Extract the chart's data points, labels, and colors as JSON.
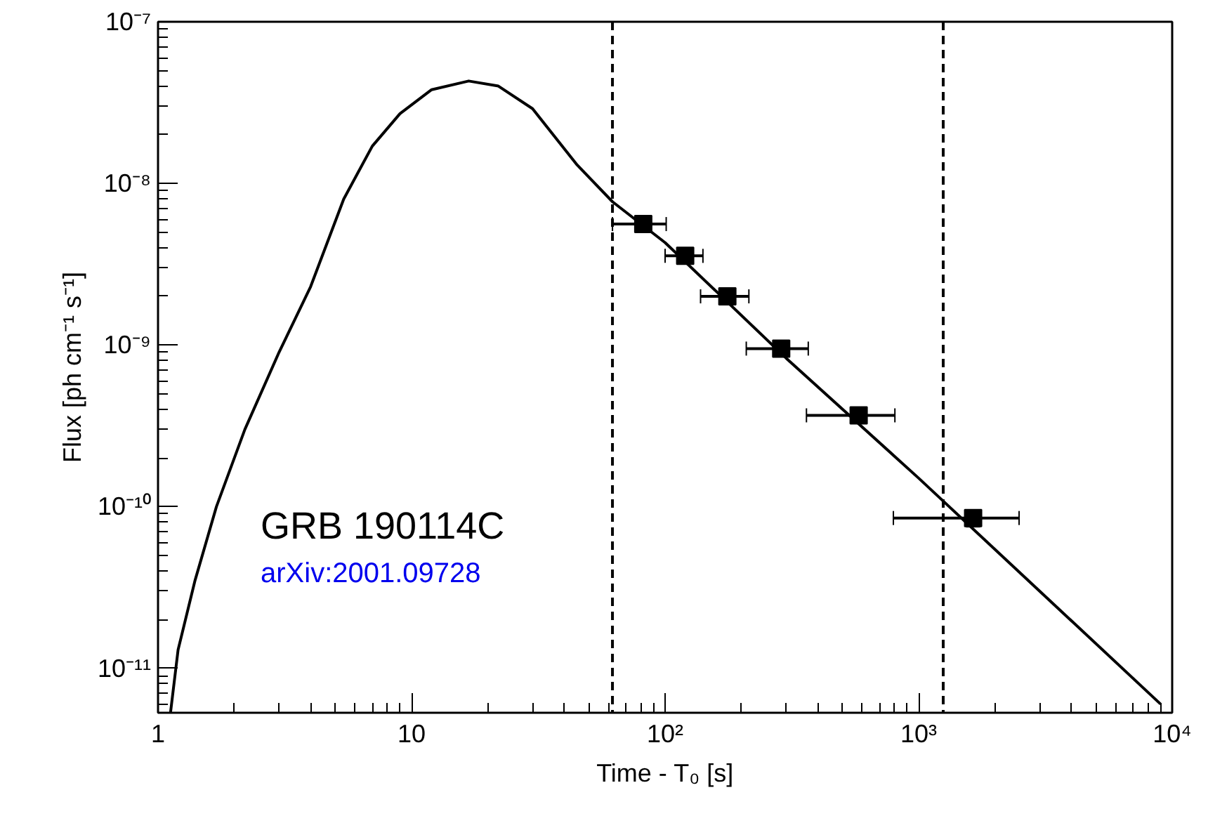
{
  "chart_data": {
    "type": "line",
    "xlabel": "Time - T₀ [s]",
    "ylabel": "Flux [ph cm⁻¹ s⁻¹]",
    "log": "xy",
    "grid": false,
    "xlim": [
      1,
      10000
    ],
    "ylim": [
      5.3e-12,
      1e-07
    ],
    "xticks": [
      1,
      10,
      {
        "value": 100,
        "label": "10²"
      },
      {
        "value": 1000,
        "label": "10³"
      },
      {
        "value": 10000,
        "label": "10⁴"
      }
    ],
    "yticks": [
      {
        "value": 1e-11,
        "label": "10⁻¹¹"
      },
      {
        "value": 1e-10,
        "label": "10⁻¹⁰"
      },
      {
        "value": 1e-09,
        "label": "10⁻⁹"
      },
      {
        "value": 1e-08,
        "label": "10⁻⁸"
      },
      {
        "value": 1e-07,
        "label": "10⁻⁷"
      }
    ],
    "series": [
      {
        "color": "#000000",
        "line_style": "solid",
        "x": [
          1.12,
          1.2,
          1.4,
          1.7,
          2.2,
          3,
          4,
          5.4,
          7,
          9,
          12,
          16.8,
          22,
          30,
          45,
          62,
          100,
          300,
          1000,
          3000,
          9000
        ],
        "values": [
          5.3e-12,
          1.3e-11,
          3.5e-11,
          1e-10,
          3e-10,
          9e-10,
          2.3e-09,
          8e-09,
          1.7e-08,
          2.7e-08,
          3.8e-08,
          4.3e-08,
          4e-08,
          2.9e-08,
          1.3e-08,
          7.7e-09,
          4.3e-09,
          8.3e-10,
          1.5e-10,
          3e-11,
          6e-12
        ]
      },
      {
        "type": "scatter",
        "color": "#000000",
        "marker": "square",
        "x": [
          82,
          120,
          176,
          287,
          580,
          1640
        ],
        "values": [
          5.6e-09,
          3.56e-09,
          2e-09,
          9.5e-10,
          3.67e-10,
          8.5e-11
        ],
        "xerrors": [
          [
            62,
            101
          ],
          [
            100,
            141
          ],
          [
            138,
            214
          ],
          [
            209,
            367
          ],
          [
            361,
            806
          ],
          [
            795,
            2490
          ]
        ],
        "errors": [
          null,
          null,
          null,
          null,
          null,
          [
            7.5e-11,
            9.5e-11
          ]
        ]
      }
    ],
    "ref_lines": [
      {
        "axis": "x",
        "value": 62,
        "line_style": "dashed",
        "color": "#000000"
      },
      {
        "axis": "x",
        "value": 1250,
        "line_style": "dashed",
        "color": "#000000"
      }
    ],
    "annotations": [
      "GRB 190114C",
      "arXiv:2001.09728"
    ]
  }
}
